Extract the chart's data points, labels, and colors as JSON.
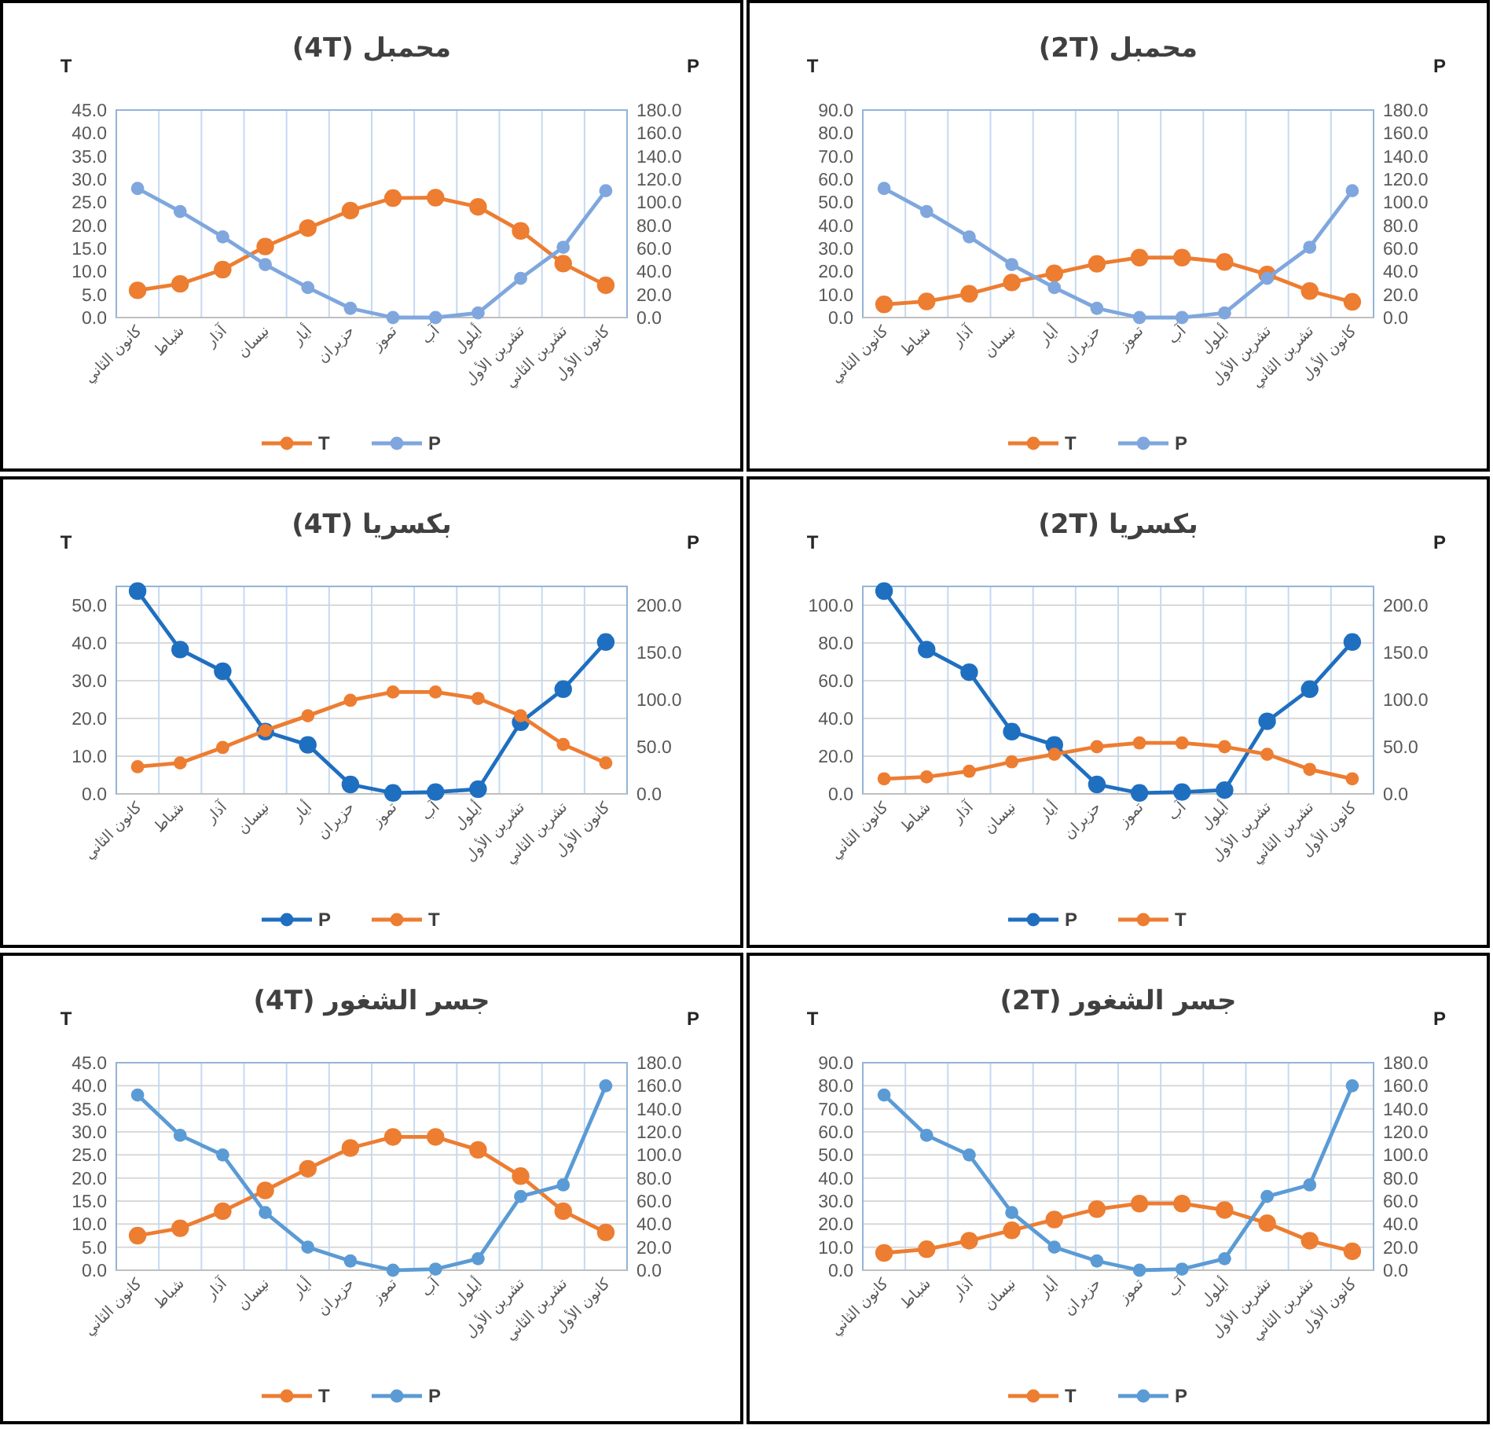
{
  "chart_data": [
    {
      "type": "line",
      "title": "محمبل (4T)",
      "ylabel": "T",
      "y2label": "P",
      "categories": [
        "كانون الثاني",
        "شباط",
        "آذار",
        "نيسان",
        "أيار",
        "حزيران",
        "تموز",
        "آب",
        "أيلول",
        "تشرين الأول",
        "تشرين الثاني",
        "كانون الأول"
      ],
      "series": [
        {
          "name": "T",
          "color": "#ed7d31",
          "values": [
            5.9,
            7.3,
            10.4,
            15.4,
            19.4,
            23.2,
            25.9,
            26.0,
            24.0,
            18.8,
            11.7,
            7.0
          ]
        },
        {
          "name": "P",
          "color": "#7fa7de",
          "axis": "y2",
          "values": [
            112,
            92,
            70,
            46,
            26,
            8,
            0,
            0,
            4,
            34,
            61,
            110
          ]
        }
      ],
      "ylim": [
        0,
        45
      ],
      "yticks": [
        {
          "value": 0,
          "label": "0.0"
        },
        {
          "value": 5,
          "label": "5.0"
        },
        {
          "value": 10,
          "label": "10.0"
        },
        {
          "value": 15,
          "label": "15.0"
        },
        {
          "value": 20,
          "label": "20.0"
        },
        {
          "value": 25,
          "label": "25.0"
        },
        {
          "value": 30,
          "label": "30.0"
        },
        {
          "value": 35,
          "label": "35.0"
        },
        {
          "value": 40,
          "label": "40.0"
        },
        {
          "value": 45,
          "label": "45.0"
        }
      ],
      "y2lim": [
        0,
        180
      ],
      "y2ticks": [
        {
          "value": 0,
          "label": "0.0"
        },
        {
          "value": 20,
          "label": "20.0"
        },
        {
          "value": 40,
          "label": "40.0"
        },
        {
          "value": 60,
          "label": "60.0"
        },
        {
          "value": 80,
          "label": "80.0"
        },
        {
          "value": 100,
          "label": "100.0"
        },
        {
          "value": 120,
          "label": "120.0"
        },
        {
          "value": 140,
          "label": "140.0"
        },
        {
          "value": 160,
          "label": "160.0"
        },
        {
          "value": 180,
          "label": "180.0"
        }
      ],
      "grid": "x",
      "legend": "bottom",
      "marker": "circle"
    },
    {
      "type": "line",
      "title": "محمبل (2T)",
      "ylabel": "T",
      "y2label": "P",
      "categories": [
        "كانون الثاني",
        "شباط",
        "آذار",
        "نيسان",
        "أيار",
        "حزيران",
        "تموز",
        "آب",
        "أيلول",
        "تشرين الأول",
        "تشرين الثاني",
        "كانون الأول"
      ],
      "series": [
        {
          "name": "T",
          "color": "#ed7d31",
          "values": [
            5.7,
            7.0,
            10.3,
            15.2,
            19.2,
            23.3,
            26.0,
            26.0,
            24.1,
            18.7,
            11.5,
            6.8
          ]
        },
        {
          "name": "P",
          "color": "#7fa7de",
          "axis": "y2",
          "values": [
            112,
            92,
            70,
            46,
            26,
            8,
            0,
            0,
            4,
            34,
            61,
            110
          ]
        }
      ],
      "ylim": [
        0,
        90
      ],
      "yticks": [
        {
          "value": 0,
          "label": "0.0"
        },
        {
          "value": 10,
          "label": "10.0"
        },
        {
          "value": 20,
          "label": "20.0"
        },
        {
          "value": 30,
          "label": "30.0"
        },
        {
          "value": 40,
          "label": "40.0"
        },
        {
          "value": 50,
          "label": "50.0"
        },
        {
          "value": 60,
          "label": "60.0"
        },
        {
          "value": 70,
          "label": "70.0"
        },
        {
          "value": 80,
          "label": "80.0"
        },
        {
          "value": 90,
          "label": "90.0"
        }
      ],
      "y2lim": [
        0,
        180
      ],
      "y2ticks": [
        {
          "value": 0,
          "label": "0.0"
        },
        {
          "value": 20,
          "label": "20.0"
        },
        {
          "value": 40,
          "label": "40.0"
        },
        {
          "value": 60,
          "label": "60.0"
        },
        {
          "value": 80,
          "label": "80.0"
        },
        {
          "value": 100,
          "label": "100.0"
        },
        {
          "value": 120,
          "label": "120.0"
        },
        {
          "value": 140,
          "label": "140.0"
        },
        {
          "value": 160,
          "label": "160.0"
        },
        {
          "value": 180,
          "label": "180.0"
        }
      ],
      "grid": "x",
      "legend": "bottom",
      "marker": "circle"
    },
    {
      "type": "line",
      "title": "بكسريا (4T)",
      "ylabel": "T",
      "y2label": "P",
      "categories": [
        "كانون الثاني",
        "شباط",
        "آذار",
        "نيسان",
        "أيار",
        "حزيران",
        "تموز",
        "آب",
        "أيلول",
        "تشرين الأول",
        "تشرين الثاني",
        "كانون الأول"
      ],
      "series": [
        {
          "name": "P",
          "color": "#1f6fc0",
          "axis": "y2",
          "values": [
            215,
            153,
            130,
            66,
            52,
            10,
            1,
            2,
            5,
            76,
            111,
            161
          ]
        },
        {
          "name": "T",
          "color": "#ed7d31",
          "values": [
            7.2,
            8.2,
            12.3,
            16.8,
            20.7,
            24.8,
            27.0,
            27.0,
            25.3,
            20.7,
            13.1,
            8.2
          ]
        }
      ],
      "ylim": [
        0,
        55
      ],
      "yticks": [
        {
          "value": 0,
          "label": "0.0"
        },
        {
          "value": 10,
          "label": "10.0"
        },
        {
          "value": 20,
          "label": "20.0"
        },
        {
          "value": 30,
          "label": "30.0"
        },
        {
          "value": 40,
          "label": "40.0"
        },
        {
          "value": 50,
          "label": "50.0"
        }
      ],
      "y2lim": [
        0,
        220
      ],
      "y2ticks": [
        {
          "value": 0,
          "label": "0.0"
        },
        {
          "value": 50,
          "label": "50.0"
        },
        {
          "value": 100,
          "label": "100.0"
        },
        {
          "value": 150,
          "label": "150.0"
        },
        {
          "value": 200,
          "label": "200.0"
        }
      ],
      "grid": true,
      "legend": "bottom",
      "marker": "circle"
    },
    {
      "type": "line",
      "title": "بكسريا (2T)",
      "ylabel": "T",
      "y2label": "P",
      "categories": [
        "كانون الثاني",
        "شباط",
        "آذار",
        "نيسان",
        "أيار",
        "حزيران",
        "تموز",
        "آب",
        "أيلول",
        "تشرين الأول",
        "تشرين الثاني",
        "كانون الأول"
      ],
      "series": [
        {
          "name": "P",
          "color": "#1f6fc0",
          "axis": "y2",
          "values": [
            215,
            153,
            129,
            66,
            52,
            10,
            1,
            2,
            4,
            77,
            111,
            161
          ]
        },
        {
          "name": "T",
          "color": "#ed7d31",
          "values": [
            8,
            9,
            12,
            17,
            21,
            25,
            27,
            27,
            25,
            21,
            13,
            8
          ]
        }
      ],
      "ylim": [
        0,
        110
      ],
      "yticks": [
        {
          "value": 0,
          "label": "0.0"
        },
        {
          "value": 20,
          "label": "20.0"
        },
        {
          "value": 40,
          "label": "40.0"
        },
        {
          "value": 60,
          "label": "60.0"
        },
        {
          "value": 80,
          "label": "80.0"
        },
        {
          "value": 100,
          "label": "100.0"
        }
      ],
      "y2lim": [
        0,
        220
      ],
      "y2ticks": [
        {
          "value": 0,
          "label": "0.0"
        },
        {
          "value": 50,
          "label": "50.0"
        },
        {
          "value": 100,
          "label": "100.0"
        },
        {
          "value": 150,
          "label": "150.0"
        },
        {
          "value": 200,
          "label": "200.0"
        }
      ],
      "grid": true,
      "legend": "bottom",
      "marker": "circle"
    },
    {
      "type": "line",
      "title": "جسر الشغور (4T)",
      "ylabel": "T",
      "y2label": "P",
      "categories": [
        "كانون الثاني",
        "شباط",
        "آذار",
        "نيسان",
        "أيار",
        "حزيران",
        "تموز",
        "آب",
        "أيلول",
        "تشرين الأول",
        "تشرين الثاني",
        "كانون الأول"
      ],
      "series": [
        {
          "name": "T",
          "color": "#ed7d31",
          "values": [
            7.5,
            9.1,
            12.8,
            17.3,
            22.0,
            26.5,
            28.9,
            28.9,
            26.1,
            20.4,
            12.8,
            8.2
          ]
        },
        {
          "name": "P",
          "color": "#5b9bd5",
          "axis": "y2",
          "values": [
            152,
            117,
            100,
            50,
            20,
            8,
            0,
            1,
            10,
            64,
            74,
            160
          ]
        }
      ],
      "ylim": [
        0,
        45
      ],
      "yticks": [
        {
          "value": 0,
          "label": "0.0"
        },
        {
          "value": 5,
          "label": "5.0"
        },
        {
          "value": 10,
          "label": "10.0"
        },
        {
          "value": 15,
          "label": "15.0"
        },
        {
          "value": 20,
          "label": "20.0"
        },
        {
          "value": 25,
          "label": "25.0"
        },
        {
          "value": 30,
          "label": "30.0"
        },
        {
          "value": 35,
          "label": "35.0"
        },
        {
          "value": 40,
          "label": "40.0"
        },
        {
          "value": 45,
          "label": "45.0"
        }
      ],
      "y2lim": [
        0,
        180
      ],
      "y2ticks": [
        {
          "value": 0,
          "label": "0.0"
        },
        {
          "value": 20,
          "label": "20.0"
        },
        {
          "value": 40,
          "label": "40.0"
        },
        {
          "value": 60,
          "label": "60.0"
        },
        {
          "value": 80,
          "label": "80.0"
        },
        {
          "value": 100,
          "label": "100.0"
        },
        {
          "value": 120,
          "label": "120.0"
        },
        {
          "value": 140,
          "label": "140.0"
        },
        {
          "value": 160,
          "label": "160.0"
        },
        {
          "value": 180,
          "label": "180.0"
        }
      ],
      "grid": true,
      "legend": "bottom",
      "marker": "circle"
    },
    {
      "type": "line",
      "title": "جسر الشغور (2T)",
      "ylabel": "T",
      "y2label": "P",
      "categories": [
        "كانون الثاني",
        "شباط",
        "آذار",
        "نيسان",
        "أيار",
        "حزيران",
        "تموز",
        "آب",
        "أيلول",
        "تشرين الأول",
        "تشرين الثاني",
        "كانون الأول"
      ],
      "series": [
        {
          "name": "T",
          "color": "#ed7d31",
          "values": [
            7.5,
            9.1,
            12.8,
            17.3,
            22.0,
            26.5,
            28.9,
            28.9,
            26.1,
            20.4,
            12.8,
            8.2
          ]
        },
        {
          "name": "P",
          "color": "#5b9bd5",
          "axis": "y2",
          "values": [
            152,
            117,
            100,
            50,
            20,
            8,
            0,
            1,
            10,
            64,
            74,
            160
          ]
        }
      ],
      "ylim": [
        0,
        90
      ],
      "yticks": [
        {
          "value": 0,
          "label": "0.0"
        },
        {
          "value": 10,
          "label": "10.0"
        },
        {
          "value": 20,
          "label": "20.0"
        },
        {
          "value": 30,
          "label": "30.0"
        },
        {
          "value": 40,
          "label": "40.0"
        },
        {
          "value": 50,
          "label": "50.0"
        },
        {
          "value": 60,
          "label": "60.0"
        },
        {
          "value": 70,
          "label": "70.0"
        },
        {
          "value": 80,
          "label": "80.0"
        },
        {
          "value": 90,
          "label": "90.0"
        }
      ],
      "y2lim": [
        0,
        180
      ],
      "y2ticks": [
        {
          "value": 0,
          "label": "0.0"
        },
        {
          "value": 20,
          "label": "20.0"
        },
        {
          "value": 40,
          "label": "40.0"
        },
        {
          "value": 60,
          "label": "60.0"
        },
        {
          "value": 80,
          "label": "80.0"
        },
        {
          "value": 100,
          "label": "100.0"
        },
        {
          "value": 120,
          "label": "120.0"
        },
        {
          "value": 140,
          "label": "140.0"
        },
        {
          "value": 160,
          "label": "160.0"
        },
        {
          "value": 180,
          "label": "180.0"
        }
      ],
      "grid": true,
      "legend": "bottom",
      "marker": "circle"
    }
  ]
}
